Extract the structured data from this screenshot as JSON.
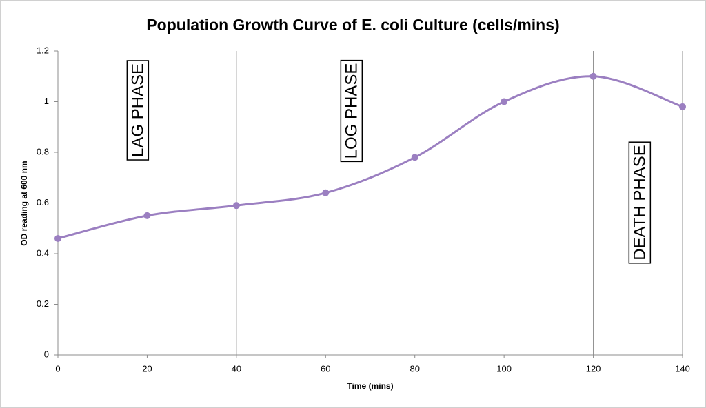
{
  "chart_data": {
    "type": "line",
    "title": "Population Growth Curve of E. coli Culture (cells/mins)",
    "x_label": "Time (mins)",
    "y_label": "OD reading at 600 nm",
    "x": [
      0,
      20,
      40,
      60,
      80,
      100,
      120,
      140
    ],
    "series": [
      {
        "name": "OD",
        "color": "#9b7fc1",
        "values": [
          0.46,
          0.55,
          0.59,
          0.64,
          0.78,
          1.0,
          1.1,
          0.98
        ]
      }
    ],
    "xlim": [
      0,
      140
    ],
    "xticks": [
      0,
      20,
      40,
      60,
      80,
      100,
      120,
      140
    ],
    "ylim": [
      0,
      1.2
    ],
    "yticks": [
      0,
      0.2,
      0.4,
      0.6,
      0.8,
      1,
      1.2
    ],
    "vertical_lines": [
      40,
      120,
      140
    ],
    "annotations": [
      "LAG PHASE",
      "LOG PHASE",
      "DEATH PHASE"
    ],
    "smooth": true,
    "markers": true
  }
}
